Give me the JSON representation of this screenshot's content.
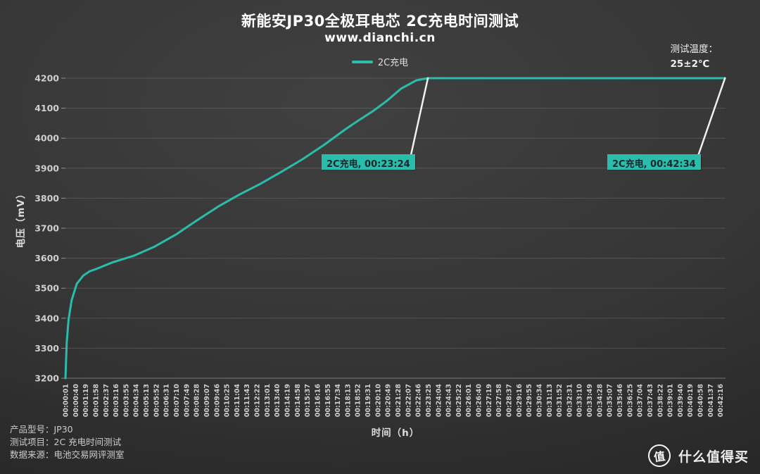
{
  "header": {
    "title": "新能安JP30全极耳电芯 2C充电时间测试",
    "subtitle": "www.dianchi.cn",
    "temperature_note": {
      "label": "测试温度：",
      "value": "25±2℃"
    }
  },
  "legend": {
    "series_label": "2C充电"
  },
  "colors": {
    "accent_teal": "#2abdab",
    "annotation_text": "#13262b",
    "callout_white": "#f0f0f0",
    "grid_line": "rgba(255,255,255,0.14)",
    "axis_text": "#cfcfcf",
    "background_dark": "#2a2a2a"
  },
  "chart_data": {
    "type": "line",
    "title": "新能安JP30全极耳电芯 2C充电时间测试",
    "subtitle": "www.dianchi.cn",
    "xlabel": "时间（h）",
    "ylabel": "电压（mV）",
    "ylim": [
      3200,
      4200
    ],
    "y_ticks": [
      3200,
      3300,
      3400,
      3500,
      3600,
      3700,
      3800,
      3900,
      4000,
      4100,
      4200
    ],
    "x_domain_seconds": [
      1,
      2556
    ],
    "grid": "horizontal",
    "legend_position": "top-center",
    "x_ticks": [
      "00:00:01",
      "00:00:40",
      "00:01:19",
      "00:01:58",
      "00:02:37",
      "00:03:16",
      "00:03:55",
      "00:04:34",
      "00:05:13",
      "00:05:52",
      "00:06:31",
      "00:07:10",
      "00:07:49",
      "00:08:28",
      "00:09:07",
      "00:09:46",
      "00:10:25",
      "00:11:04",
      "00:11:43",
      "00:12:22",
      "00:13:01",
      "00:13:40",
      "00:14:19",
      "00:14:58",
      "00:15:37",
      "00:16:16",
      "00:16:55",
      "00:17:34",
      "00:18:13",
      "00:18:52",
      "00:19:31",
      "00:20:10",
      "00:20:49",
      "00:21:28",
      "00:22:07",
      "00:22:46",
      "00:23:25",
      "00:24:04",
      "00:24:43",
      "00:25:22",
      "00:26:01",
      "00:26:40",
      "00:27:19",
      "00:27:58",
      "00:28:37",
      "00:29:16",
      "00:29:55",
      "00:30:34",
      "00:31:13",
      "00:31:52",
      "00:32:31",
      "00:33:10",
      "00:33:49",
      "00:34:28",
      "00:35:07",
      "00:35:46",
      "00:36:25",
      "00:37:04",
      "00:37:43",
      "00:38:22",
      "00:39:01",
      "00:39:40",
      "00:40:19",
      "00:40:58",
      "00:41:37",
      "00:42:16"
    ],
    "series": [
      {
        "name": "2C充电",
        "color": "#2abdab",
        "points": [
          [
            1,
            3200
          ],
          [
            6,
            3320
          ],
          [
            13,
            3395
          ],
          [
            25,
            3460
          ],
          [
            45,
            3515
          ],
          [
            70,
            3542
          ],
          [
            94,
            3556
          ],
          [
            120,
            3564
          ],
          [
            183,
            3586
          ],
          [
            265,
            3608
          ],
          [
            347,
            3639
          ],
          [
            429,
            3679
          ],
          [
            510,
            3726
          ],
          [
            592,
            3772
          ],
          [
            674,
            3812
          ],
          [
            756,
            3848
          ],
          [
            837,
            3888
          ],
          [
            919,
            3930
          ],
          [
            1001,
            3977
          ],
          [
            1082,
            4028
          ],
          [
            1137,
            4060
          ],
          [
            1191,
            4090
          ],
          [
            1246,
            4125
          ],
          [
            1300,
            4165
          ],
          [
            1360,
            4193
          ],
          [
            1404,
            4200
          ],
          [
            1600,
            4200
          ],
          [
            1900,
            4200
          ],
          [
            2200,
            4200
          ],
          [
            2554,
            4200
          ]
        ]
      }
    ],
    "annotations": [
      {
        "label": "2C充电, 00:23:24",
        "anchor_seconds": 1404,
        "anchor_mv": 4200
      },
      {
        "label": "2C充电, 00:42:34",
        "anchor_seconds": 2554,
        "anchor_mv": 4200
      }
    ]
  },
  "footer": {
    "info_lines": [
      "产品型号：JP30",
      "测试项目：2C 充电时间测试",
      "数据来源：电池交易网评测室"
    ],
    "logo": {
      "icon_char": "值",
      "text": "什么值得买"
    }
  }
}
